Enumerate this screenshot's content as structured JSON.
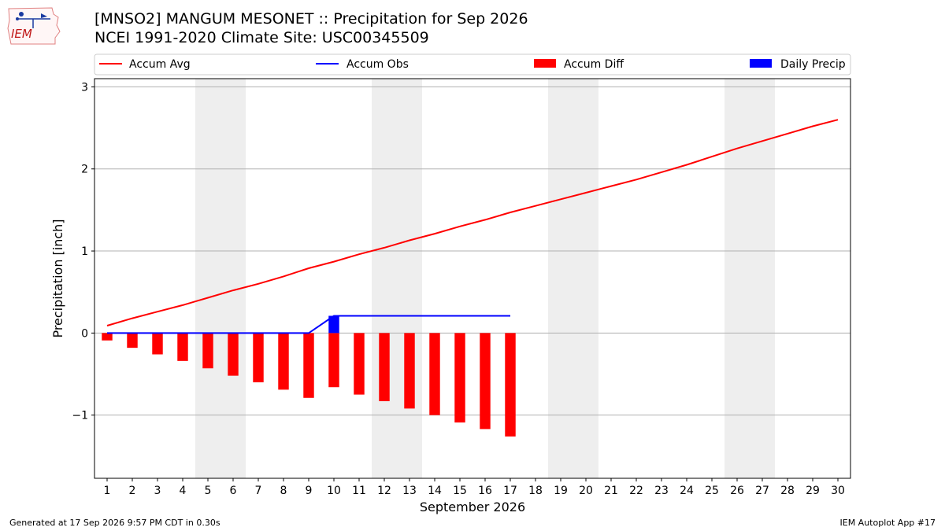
{
  "header": {
    "title_line1": "[MNSO2] MANGUM MESONET :: Precipitation for Sep 2026",
    "title_line2": "NCEI 1991-2020 Climate Site: USC00345509",
    "logo_text": "IEM"
  },
  "footer": {
    "left": "Generated at 17 Sep 2026 9:57 PM CDT in 0.30s",
    "right": "IEM Autoplot App #17"
  },
  "colors": {
    "accum_avg": "#ff0000",
    "accum_obs": "#0000ff",
    "accum_diff": "#ff0000",
    "daily_precip": "#0000ff",
    "weekend_shade": "#eeeeee",
    "grid": "#b0b0b0"
  },
  "chart_data": {
    "type": "bar",
    "xlabel": "September 2026",
    "ylabel": "Precipitation [inch]",
    "xlim": [
      0.5,
      30.5
    ],
    "ylim": [
      -1.77,
      3.1
    ],
    "yticks": [
      -1,
      0,
      1,
      2,
      3
    ],
    "ytick_labels": [
      "−1",
      "0",
      "1",
      "2",
      "3"
    ],
    "x": [
      1,
      2,
      3,
      4,
      5,
      6,
      7,
      8,
      9,
      10,
      11,
      12,
      13,
      14,
      15,
      16,
      17,
      18,
      19,
      20,
      21,
      22,
      23,
      24,
      25,
      26,
      27,
      28,
      29,
      30
    ],
    "grid": "y",
    "legend": {
      "placement": "top",
      "entries": [
        {
          "label": "Accum Avg",
          "kind": "line",
          "color": "#ff0000"
        },
        {
          "label": "Accum Obs",
          "kind": "line",
          "color": "#0000ff"
        },
        {
          "label": "Accum Diff",
          "kind": "bar",
          "color": "#ff0000"
        },
        {
          "label": "Daily Precip",
          "kind": "bar",
          "color": "#0000ff"
        }
      ]
    },
    "weekend_spans": [
      [
        4.5,
        6.5
      ],
      [
        11.5,
        13.5
      ],
      [
        18.5,
        20.5
      ],
      [
        25.5,
        27.5
      ]
    ],
    "series": [
      {
        "name": "Accum Avg",
        "type": "line",
        "x": [
          1,
          2,
          3,
          4,
          5,
          6,
          7,
          8,
          9,
          10,
          11,
          12,
          13,
          14,
          15,
          16,
          17,
          18,
          19,
          20,
          21,
          22,
          23,
          24,
          25,
          26,
          27,
          28,
          29,
          30
        ],
        "values": [
          0.09,
          0.18,
          0.26,
          0.34,
          0.43,
          0.52,
          0.6,
          0.69,
          0.79,
          0.87,
          0.96,
          1.04,
          1.13,
          1.21,
          1.3,
          1.38,
          1.47,
          1.55,
          1.63,
          1.71,
          1.79,
          1.87,
          1.96,
          2.05,
          2.15,
          2.25,
          2.34,
          2.43,
          2.52,
          2.6
        ]
      },
      {
        "name": "Accum Obs",
        "type": "line",
        "x": [
          1,
          2,
          3,
          4,
          5,
          6,
          7,
          8,
          9,
          10,
          11,
          12,
          13,
          14,
          15,
          16,
          17
        ],
        "values": [
          0,
          0,
          0,
          0,
          0,
          0,
          0,
          0,
          0,
          0.21,
          0.21,
          0.21,
          0.21,
          0.21,
          0.21,
          0.21,
          0.21
        ]
      },
      {
        "name": "Accum Diff",
        "type": "bar",
        "x": [
          1,
          2,
          3,
          4,
          5,
          6,
          7,
          8,
          9,
          10,
          11,
          12,
          13,
          14,
          15,
          16,
          17
        ],
        "values": [
          -0.09,
          -0.18,
          -0.26,
          -0.34,
          -0.43,
          -0.52,
          -0.6,
          -0.69,
          -0.79,
          -0.66,
          -0.75,
          -0.83,
          -0.92,
          -1.0,
          -1.09,
          -1.17,
          -1.26
        ]
      },
      {
        "name": "Daily Precip",
        "type": "bar",
        "x": [
          10
        ],
        "values": [
          0.21
        ]
      }
    ]
  }
}
